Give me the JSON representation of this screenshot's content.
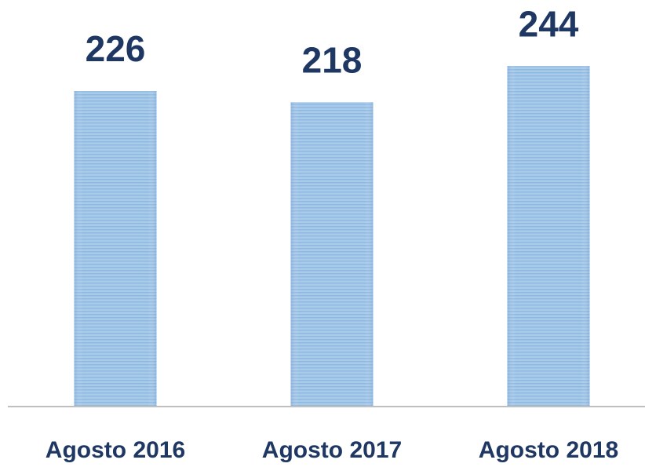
{
  "chart_data": {
    "type": "bar",
    "categories": [
      "Agosto 2016",
      "Agosto 2017",
      "Agosto 2018"
    ],
    "values": [
      226,
      218,
      244
    ],
    "color": "#9dc3e6",
    "ylim": [
      0,
      250
    ]
  }
}
